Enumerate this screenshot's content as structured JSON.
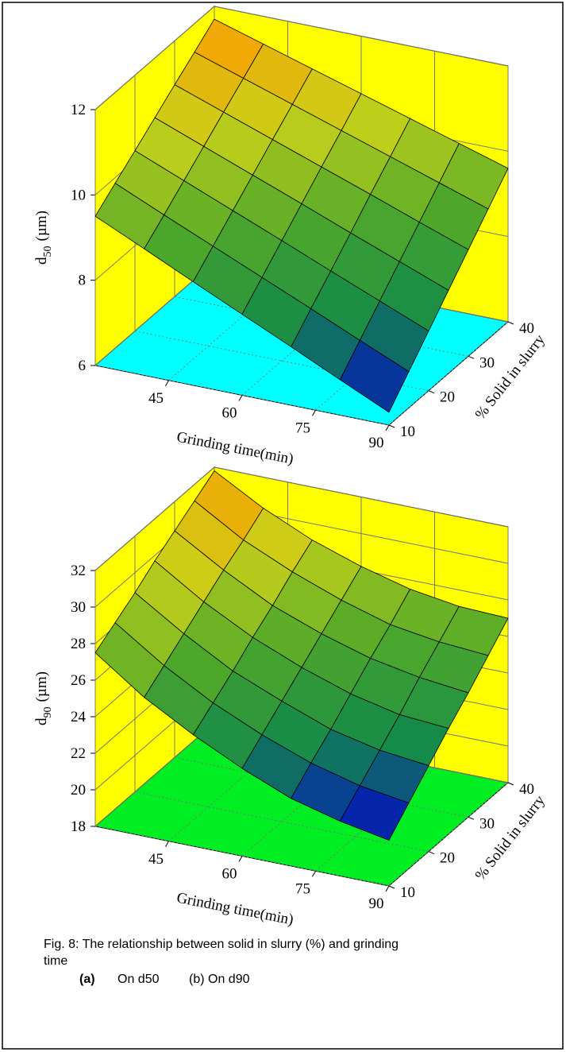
{
  "chart_data": [
    {
      "type": "surface",
      "x": [
        30,
        40,
        50,
        60,
        70,
        80,
        90
      ],
      "y": [
        10,
        15,
        20,
        25,
        30,
        35,
        40
      ],
      "z": [
        [
          9.5,
          8.97,
          8.43,
          7.9,
          7.37,
          6.83,
          6.3
        ],
        [
          9.87,
          9.36,
          8.86,
          8.36,
          7.86,
          7.35,
          6.85
        ],
        [
          10.23,
          9.76,
          9.29,
          8.82,
          8.34,
          7.87,
          7.4
        ],
        [
          10.6,
          10.16,
          9.72,
          9.28,
          8.83,
          8.39,
          7.95
        ],
        [
          10.97,
          10.56,
          10.15,
          9.74,
          9.33,
          8.91,
          8.5
        ],
        [
          11.33,
          10.95,
          10.57,
          10.19,
          9.81,
          9.43,
          9.05
        ],
        [
          11.7,
          11.35,
          11.0,
          10.65,
          10.3,
          9.95,
          9.6
        ]
      ],
      "xlim": [
        30,
        90
      ],
      "xticks": [
        45,
        60,
        75,
        90
      ],
      "ylim": [
        10,
        40
      ],
      "yticks": [
        10,
        20,
        30,
        40
      ],
      "zlim": [
        6,
        12
      ],
      "zticks": [
        6,
        8,
        10,
        12
      ],
      "xlabel": "Grinding time(min)",
      "ylabel": "% Solid in slurry",
      "zlabel": "d",
      "zlabel_sub": "50",
      "zlabel_unit": "(µm)",
      "wall_color": "#ffff00",
      "floor_color": "#00ffff",
      "colormap": [
        "#0000d0",
        "#138a4a",
        "#4fa82a",
        "#c8d21a",
        "#ff9a00"
      ]
    },
    {
      "type": "surface",
      "x": [
        30,
        40,
        50,
        60,
        70,
        80,
        90
      ],
      "y": [
        10,
        15,
        20,
        25,
        30,
        35,
        40
      ],
      "z": [
        [
          27.5,
          25.6,
          24.1,
          22.8,
          21.7,
          21.0,
          20.5
        ],
        [
          28.2,
          26.4,
          24.9,
          23.7,
          22.7,
          22.0,
          21.6
        ],
        [
          28.9,
          27.2,
          25.7,
          24.6,
          23.6,
          23.0,
          22.7
        ],
        [
          29.7,
          28.0,
          26.6,
          25.5,
          24.6,
          24.0,
          23.8
        ],
        [
          30.4,
          28.8,
          27.4,
          26.4,
          25.6,
          25.1,
          24.8
        ],
        [
          31.1,
          29.5,
          28.3,
          27.3,
          26.5,
          26.1,
          25.9
        ],
        [
          31.8,
          30.3,
          29.1,
          28.2,
          27.5,
          27.1,
          27.0
        ]
      ],
      "xlim": [
        30,
        90
      ],
      "xticks": [
        45,
        60,
        75,
        90
      ],
      "ylim": [
        10,
        40
      ],
      "yticks": [
        10,
        20,
        30,
        40
      ],
      "zlim": [
        18,
        32
      ],
      "zticks": [
        18,
        20,
        22,
        24,
        26,
        28,
        30,
        32
      ],
      "xlabel": "Grinding time(min)",
      "ylabel": "% Solid in slurry",
      "zlabel": "d",
      "zlabel_sub": "90",
      "zlabel_unit": "(µm)",
      "wall_color": "#ffff00",
      "floor_color": "#00ee22",
      "colormap": [
        "#0000d0",
        "#138a4a",
        "#4fa82a",
        "#c8d21a",
        "#ff9a00"
      ]
    }
  ],
  "caption": {
    "line1": "Fig. 8: The relationship between solid in slurry (%) and grinding",
    "line2": "time",
    "a": "(a)",
    "a_text": "On d50",
    "b": "(b) On d90"
  }
}
